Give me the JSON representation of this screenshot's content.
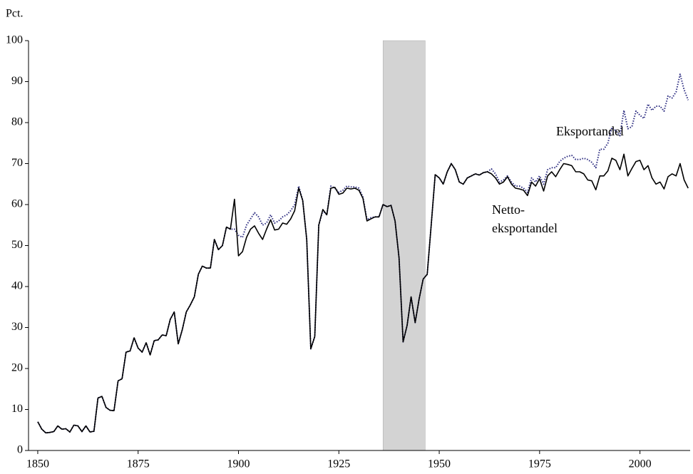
{
  "chart_data": {
    "type": "line",
    "y_axis_label": "Pct.",
    "annotations": [
      "Eksportandel",
      "Netto-",
      "eksportandel"
    ],
    "x": [
      1850,
      1851,
      1852,
      1853,
      1854,
      1855,
      1856,
      1857,
      1858,
      1859,
      1860,
      1861,
      1862,
      1863,
      1864,
      1865,
      1866,
      1867,
      1868,
      1869,
      1870,
      1871,
      1872,
      1873,
      1874,
      1875,
      1876,
      1877,
      1878,
      1879,
      1880,
      1881,
      1882,
      1883,
      1884,
      1885,
      1886,
      1887,
      1888,
      1889,
      1890,
      1891,
      1892,
      1893,
      1894,
      1895,
      1896,
      1897,
      1898,
      1899,
      1900,
      1901,
      1902,
      1903,
      1904,
      1905,
      1906,
      1907,
      1908,
      1909,
      1910,
      1911,
      1912,
      1913,
      1914,
      1915,
      1916,
      1917,
      1918,
      1919,
      1920,
      1921,
      1922,
      1923,
      1924,
      1925,
      1926,
      1927,
      1928,
      1929,
      1930,
      1931,
      1932,
      1933,
      1934,
      1935,
      1936,
      1937,
      1938,
      1939,
      1940,
      1941,
      1942,
      1943,
      1944,
      1945,
      1946,
      1947,
      1948,
      1949,
      1950,
      1951,
      1952,
      1953,
      1954,
      1955,
      1956,
      1957,
      1958,
      1959,
      1960,
      1961,
      1962,
      1963,
      1964,
      1965,
      1966,
      1967,
      1968,
      1969,
      1970,
      1971,
      1972,
      1973,
      1974,
      1975,
      1976,
      1977,
      1978,
      1979,
      1980,
      1981,
      1982,
      1983,
      1984,
      1985,
      1986,
      1987,
      1988,
      1989,
      1990,
      1991,
      1992,
      1993,
      1994,
      1995,
      1996,
      1997,
      1998,
      1999,
      2000,
      2001,
      2002,
      2003,
      2004,
      2005,
      2006,
      2007,
      2008,
      2009,
      2010,
      2011,
      2012
    ],
    "series": [
      {
        "name": "Eksportandel",
        "color": "#2b2b80",
        "dash": true,
        "values": [
          7,
          5.2,
          4.3,
          4.4,
          4.6,
          6,
          5.2,
          5.3,
          4.5,
          6.2,
          6,
          4.6,
          6,
          4.5,
          4.7,
          12.8,
          13.2,
          10.5,
          9.8,
          9.7,
          17,
          17.5,
          24,
          24.3,
          27.5,
          25,
          24,
          26.3,
          23.3,
          26.8,
          27,
          28.2,
          28,
          32,
          33.8,
          26,
          29.5,
          33.8,
          35.5,
          37.5,
          43,
          45,
          44.5,
          44.5,
          51.5,
          49,
          50,
          54.5,
          54,
          54,
          52.5,
          52,
          55,
          56.5,
          58,
          57,
          55,
          55.5,
          57.5,
          55.5,
          56,
          57,
          57.5,
          58.5,
          60,
          64.5,
          61,
          51.5,
          24.8,
          27.8,
          55,
          58.5,
          57.5,
          64.5,
          64,
          63,
          63.5,
          64.5,
          64.3,
          64.3,
          64,
          61.8,
          56.3,
          56.8,
          57,
          57,
          60,
          59.5,
          59.8,
          56,
          47,
          26.5,
          30.5,
          37.5,
          31.2,
          37,
          41.8,
          43,
          55,
          67.3,
          66.5,
          65,
          68,
          70,
          68.5,
          65.5,
          65,
          66.5,
          67,
          67.5,
          67.2,
          67.8,
          68,
          68.7,
          67.5,
          65.5,
          66,
          67,
          65.5,
          64.5,
          64.5,
          64,
          63,
          66.5,
          65.5,
          67,
          65,
          68.5,
          69,
          69,
          70.5,
          71.3,
          71.8,
          72,
          71,
          71,
          71.3,
          71,
          70.3,
          69,
          73.5,
          73.5,
          75,
          78.8,
          78,
          76.8,
          83,
          78.5,
          79,
          82.8,
          81.8,
          81,
          84.5,
          83,
          84,
          84,
          82.8,
          86.5,
          86,
          87.5,
          91.8,
          88,
          85.5
        ]
      },
      {
        "name": "Netto-eksportandel",
        "color": "#000000",
        "dash": false,
        "values": [
          7,
          5.2,
          4.3,
          4.4,
          4.6,
          6,
          5.2,
          5.3,
          4.5,
          6.2,
          6,
          4.6,
          6,
          4.5,
          4.7,
          12.8,
          13.2,
          10.5,
          9.8,
          9.7,
          17,
          17.5,
          24,
          24.3,
          27.5,
          25,
          24,
          26.3,
          23.3,
          26.8,
          27,
          28.2,
          28,
          32,
          33.8,
          26,
          29.5,
          33.8,
          35.5,
          37.5,
          43,
          45,
          44.5,
          44.5,
          51.5,
          49,
          50,
          54.5,
          54,
          61.3,
          47.5,
          48.5,
          52,
          54,
          54.8,
          53,
          51.5,
          54,
          56.3,
          53.8,
          54,
          55.5,
          55.2,
          56.5,
          58.5,
          64,
          61,
          51.5,
          24.8,
          27.8,
          55,
          58.8,
          57.5,
          64,
          64.2,
          62.5,
          62.8,
          64,
          63.8,
          64,
          63.5,
          61.5,
          56,
          56.5,
          57,
          57,
          60,
          59.5,
          59.8,
          56,
          47,
          26.5,
          30.5,
          37.5,
          31.2,
          37,
          41.8,
          43,
          55,
          67.3,
          66.5,
          65,
          68,
          70,
          68.5,
          65.5,
          65,
          66.5,
          67,
          67.5,
          67.2,
          67.8,
          68,
          67.5,
          66.5,
          65,
          65.5,
          66.8,
          65,
          64,
          63.8,
          63.5,
          62.2,
          65.5,
          64.5,
          66.3,
          63.3,
          67,
          68,
          66.8,
          68.5,
          70,
          69.8,
          69.5,
          68,
          68,
          67.5,
          66,
          65.8,
          63.6,
          67,
          67,
          68.2,
          71.3,
          70.8,
          68.5,
          72.3,
          67,
          68.8,
          70.5,
          70.8,
          68.5,
          69.5,
          66.5,
          65,
          65.5,
          63.8,
          66.8,
          67.5,
          67,
          70,
          66,
          64
        ]
      }
    ],
    "shaded_period": [
      1936,
      1946.5
    ],
    "shade_color": "#d3d3d3",
    "xlim": [
      1847.7,
      2012.5
    ],
    "xticks": [
      1850,
      1875,
      1900,
      1925,
      1950,
      1975,
      2000
    ],
    "ylim": [
      0,
      100
    ],
    "yticks": [
      0,
      10,
      20,
      30,
      40,
      50,
      60,
      70,
      80,
      90,
      100
    ],
    "grid": false
  }
}
